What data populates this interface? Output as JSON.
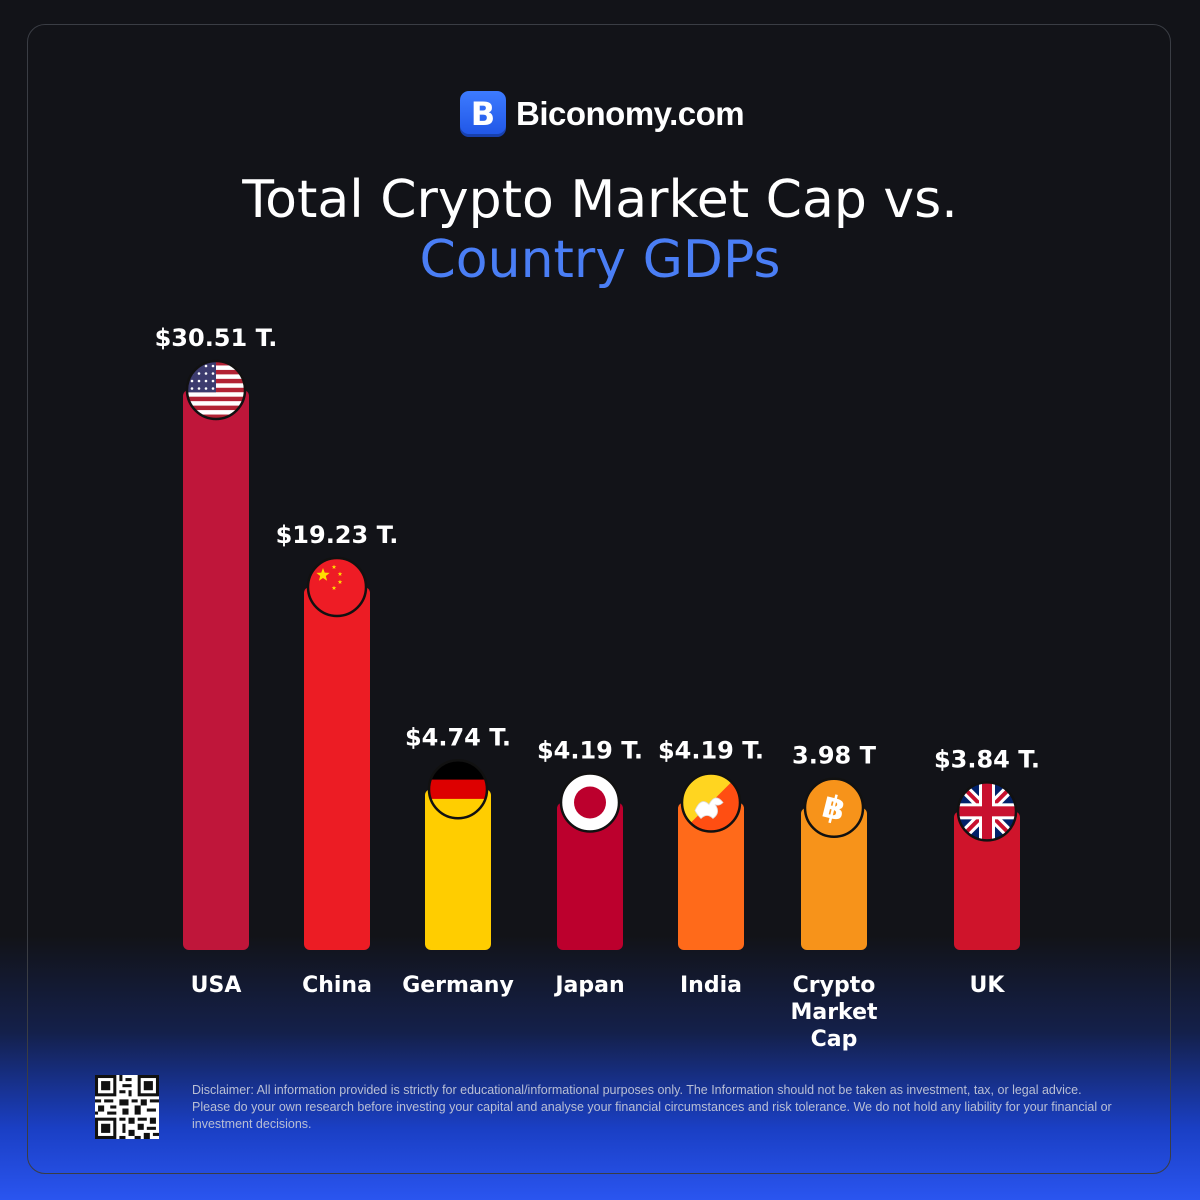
{
  "brand": {
    "name": "Biconomy.com",
    "mark": "B"
  },
  "title": {
    "line1": "Total Crypto Market Cap vs.",
    "line2": "Country GDPs"
  },
  "colors": {
    "background": "#121318",
    "title_accent": "#4a7ef5",
    "brand_blue": "#2a63f0"
  },
  "chart_data": {
    "type": "bar",
    "categories": [
      "USA",
      "China",
      "Germany",
      "Japan",
      "India",
      "Crypto Market Cap",
      "UK"
    ],
    "values": [
      30.51,
      19.23,
      4.74,
      4.19,
      4.19,
      3.98,
      3.84
    ],
    "value_labels": [
      "$30.51 T.",
      "$19.23 T.",
      "$4.74 T.",
      "$4.19 T.",
      "$4.19 T.",
      "3.98 T",
      "$3.84 T."
    ],
    "bar_colors": [
      "#bf163a",
      "#ec1c24",
      "#ffcd00",
      "#bc002d",
      "#ff6a1a",
      "#f7931a",
      "#cf142b"
    ],
    "icons": [
      "usa-flag-icon",
      "china-flag-icon",
      "germany-flag-icon",
      "japan-flag-icon",
      "bhutan-flag-icon",
      "bitcoin-icon",
      "uk-flag-icon"
    ],
    "title": "Total Crypto Market Cap vs. Country GDPs",
    "xlabel": "",
    "ylabel": "",
    "ylim": [
      0,
      30.51
    ],
    "grid": false,
    "legend": "none"
  },
  "disclaimer": "Disclaimer: All information provided is strictly for educational/informational purposes only. The Information should not be taken as investment, tax, or legal advice. Please do your own research before investing your capital and analyse your financial circumstances and risk tolerance. We do not hold any liability for your financial or investment decisions."
}
